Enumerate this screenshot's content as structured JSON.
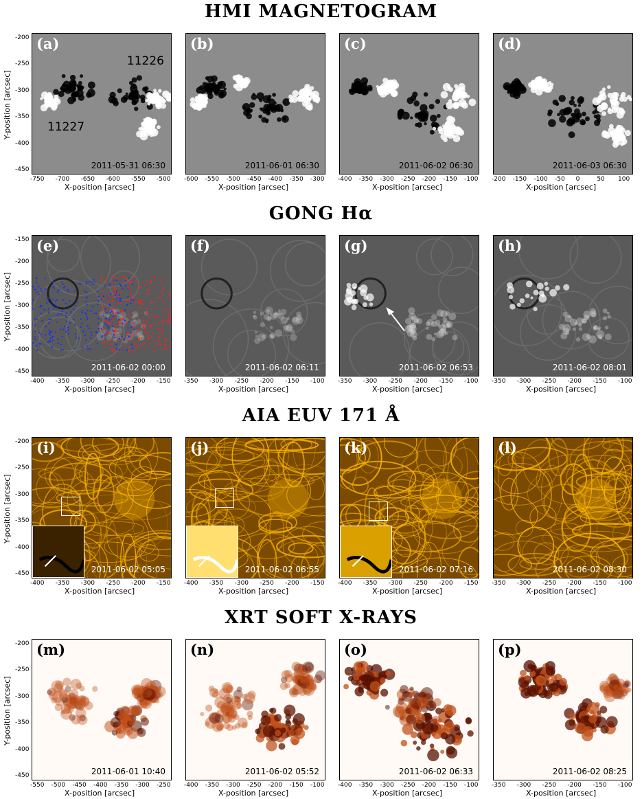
{
  "rows": [
    {
      "title": "HMI MAGNETOGRAM",
      "style": "hmi",
      "ylabel": "Y-position [arcsec]",
      "yticks": [
        "-200",
        "-250",
        "-300",
        "-350",
        "-400",
        "-450"
      ],
      "panels": [
        {
          "label": "(a)",
          "time": "2011-05-31 06:30",
          "xlabel": "X-position [arcsec]",
          "xticks": [
            "-750",
            "-700",
            "-650",
            "-600",
            "-550",
            "-500"
          ],
          "annotations": [
            "11226",
            "11227"
          ]
        },
        {
          "label": "(b)",
          "time": "2011-06-01 06:30",
          "xlabel": "X-position [arcsec]",
          "xticks": [
            "-600",
            "-550",
            "-500",
            "-450",
            "-400",
            "-350",
            "-300"
          ]
        },
        {
          "label": "(c)",
          "time": "2011-06-02 06:30",
          "xlabel": "X-position [arcsec]",
          "xticks": [
            "-400",
            "-350",
            "-300",
            "-250",
            "-200",
            "-150",
            "-100"
          ]
        },
        {
          "label": "(d)",
          "time": "2011-06-03 06:30",
          "xlabel": "X-position [arcsec]",
          "xticks": [
            "-200",
            "-150",
            "-100",
            "-50",
            "0",
            "50",
            "100"
          ]
        }
      ]
    },
    {
      "title": "GONG Hα",
      "style": "gong",
      "ylabel": "Y-position [arcsec]",
      "yticks": [
        "-150",
        "-200",
        "-250",
        "-300",
        "-350",
        "-400",
        "-450"
      ],
      "panels": [
        {
          "label": "(e)",
          "time": "2011-06-02 00:00",
          "xlabel": "X-position [arcsec]",
          "xticks": [
            "-400",
            "-350",
            "-300",
            "-250",
            "-200",
            "-150"
          ]
        },
        {
          "label": "(f)",
          "time": "2011-06-02 06:11",
          "xlabel": "X-position [arcsec]",
          "xticks": [
            "-350",
            "-300",
            "-250",
            "-200",
            "-150",
            "-100"
          ]
        },
        {
          "label": "(g)",
          "time": "2011-06-02 06:53",
          "xlabel": "X-position [arcsec]",
          "xticks": [
            "-350",
            "-300",
            "-250",
            "-200",
            "-150",
            "-100"
          ]
        },
        {
          "label": "(h)",
          "time": "2011-06-02 08:01",
          "xlabel": "X-position [arcsec]",
          "xticks": [
            "-350",
            "-300",
            "-250",
            "-200",
            "-150",
            "-100"
          ]
        }
      ]
    },
    {
      "title": "AIA EUV 171 Å",
      "style": "aia",
      "ylabel": "Y-position [arcsec]",
      "yticks": [
        "-200",
        "-250",
        "-300",
        "-350",
        "-400",
        "-450"
      ],
      "panels": [
        {
          "label": "(i)",
          "time": "2011-06-02 05:05",
          "xlabel": "X-position [arcsec]",
          "xticks": [
            "-400",
            "-350",
            "-300",
            "-250",
            "-200",
            "-150"
          ]
        },
        {
          "label": "(j)",
          "time": "2011-06-02 06:55",
          "xlabel": "X-position [arcsec]",
          "xticks": [
            "-400",
            "-350",
            "-300",
            "-250",
            "-200",
            "-150"
          ]
        },
        {
          "label": "(k)",
          "time": "2011-06-02 07:16",
          "xlabel": "X-position [arcsec]",
          "xticks": [
            "-400",
            "-350",
            "-300",
            "-250",
            "-200",
            "-150"
          ]
        },
        {
          "label": "(l)",
          "time": "2011-06-02 08:30",
          "xlabel": "X-position [arcsec]",
          "xticks": [
            "-350",
            "-300",
            "-250",
            "-200",
            "-150",
            "-100"
          ]
        }
      ]
    },
    {
      "title": "XRT SOFT X-RAYS",
      "style": "xrt",
      "ylabel": "Y-position [arcsec]",
      "yticks": [
        "-200",
        "-250",
        "-300",
        "-350",
        "-400",
        "-450"
      ],
      "panels": [
        {
          "label": "(m)",
          "time": "2011-06-01 10:40",
          "xlabel": "X-position [arcsec]",
          "xticks": [
            "-550",
            "-500",
            "-450",
            "-400",
            "-350",
            "-300",
            "-250"
          ]
        },
        {
          "label": "(n)",
          "time": "2011-06-02 05:52",
          "xlabel": "X-position [arcsec]",
          "xticks": [
            "-400",
            "-350",
            "-300",
            "-250",
            "-200",
            "-150",
            "-100"
          ]
        },
        {
          "label": "(o)",
          "time": "2011-06-02 06:33",
          "xlabel": "X-position [arcsec]",
          "xticks": [
            "-400",
            "-350",
            "-300",
            "-250",
            "-200",
            "-150",
            "-100"
          ]
        },
        {
          "label": "(p)",
          "time": "2011-06-02 08:25",
          "xlabel": "X-position [arcsec]",
          "xticks": [
            "-350",
            "-300",
            "-250",
            "-200",
            "-150",
            "-100"
          ]
        }
      ]
    }
  ],
  "colors": {
    "hmi_bg": "#8c8c8c",
    "gong_bg": "#5a5a5a",
    "aia_bg": "#7a4a00",
    "aia_bright": "#ffb800",
    "xrt_bg": "#fffaf5",
    "xrt_dark": "#5a1000"
  }
}
